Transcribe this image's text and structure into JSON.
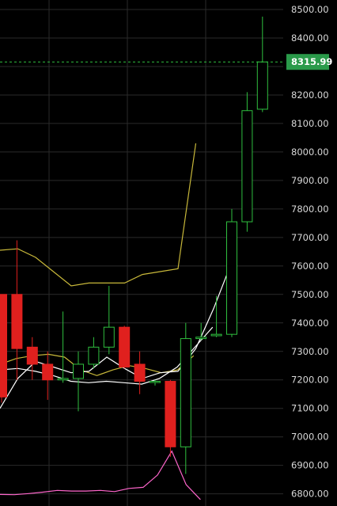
{
  "chart_data": {
    "type": "candlestick",
    "title": "",
    "xlabel": "",
    "ylabel": "",
    "ylim": [
      6780,
      8520
    ],
    "yticks": [
      8500,
      8400,
      8300,
      8200,
      8100,
      8000,
      7900,
      7800,
      7700,
      7600,
      7500,
      7400,
      7300,
      7200,
      7100,
      7000,
      6900,
      6800
    ],
    "ytick_labels": [
      "8500.00",
      "8400.00",
      "8300.00",
      "8200.00",
      "8100.00",
      "8000.00",
      "7900.00",
      "7800.00",
      "7700.00",
      "7600.00",
      "7500.00",
      "7400.00",
      "7300.00",
      "7200.00",
      "7100.00",
      "7000.00",
      "6900.00",
      "6800.00"
    ],
    "grid": true,
    "current_price": 8315.99,
    "current_price_label": "8315.99",
    "candles": [
      {
        "open": 7500,
        "high": 7500,
        "low": 7120,
        "close": 7140
      },
      {
        "open": 7500,
        "high": 7690,
        "low": 7200,
        "close": 7310
      },
      {
        "open": 7315,
        "high": 7350,
        "low": 7200,
        "close": 7255
      },
      {
        "open": 7255,
        "high": 7300,
        "low": 7130,
        "close": 7200
      },
      {
        "open": 7200,
        "high": 7440,
        "low": 7190,
        "close": 7205
      },
      {
        "open": 7205,
        "high": 7300,
        "low": 7090,
        "close": 7255
      },
      {
        "open": 7255,
        "high": 7350,
        "low": 7240,
        "close": 7315
      },
      {
        "open": 7315,
        "high": 7530,
        "low": 7290,
        "close": 7385
      },
      {
        "open": 7385,
        "high": 7390,
        "low": 7240,
        "close": 7245
      },
      {
        "open": 7255,
        "high": 7300,
        "low": 7150,
        "close": 7195
      },
      {
        "open": 7195,
        "high": 7200,
        "low": 7180,
        "close": 7195
      },
      {
        "open": 7195,
        "high": 7200,
        "low": 6930,
        "close": 6965
      },
      {
        "open": 6965,
        "high": 7400,
        "low": 6870,
        "close": 7345
      },
      {
        "open": 7345,
        "high": 7400,
        "low": 7340,
        "close": 7350
      },
      {
        "open": 7355,
        "high": 7495,
        "low": 7350,
        "close": 7360
      },
      {
        "open": 7360,
        "high": 7800,
        "low": 7350,
        "close": 7755
      },
      {
        "open": 7755,
        "high": 8210,
        "low": 7720,
        "close": 8145
      },
      {
        "open": 8150,
        "high": 8475,
        "low": 8140,
        "close": 8316
      }
    ],
    "series": [
      {
        "color": "#c8b83a",
        "values": [
          7655,
          7660,
          7630,
          7580,
          7530,
          7540,
          7540,
          7540,
          7570,
          7580,
          7590,
          8030
        ]
      },
      {
        "color": "#c8b83a",
        "values": [
          7255,
          7275,
          7285,
          7290,
          7280,
          7235,
          7215,
          7235,
          7250,
          7240,
          7225,
          7235,
          7285
        ]
      },
      {
        "color": "#ffffff",
        "values": [
          7100,
          7205,
          7265,
          7245,
          7225,
          7230,
          7280,
          7240,
          7205,
          7225,
          7230,
          7310,
          7450,
          7610
        ]
      },
      {
        "color": "#ffffff",
        "values": [
          7235,
          7240,
          7230,
          7215,
          7195,
          7190,
          7195,
          7190,
          7185,
          7205,
          7245,
          7315,
          7385
        ]
      },
      {
        "color": "#ff66cc",
        "values": [
          6798,
          6797,
          6801,
          6806,
          6812,
          6810,
          6810,
          6812,
          6808,
          6819,
          6823,
          6866,
          6950,
          6832,
          6780
        ]
      }
    ]
  }
}
